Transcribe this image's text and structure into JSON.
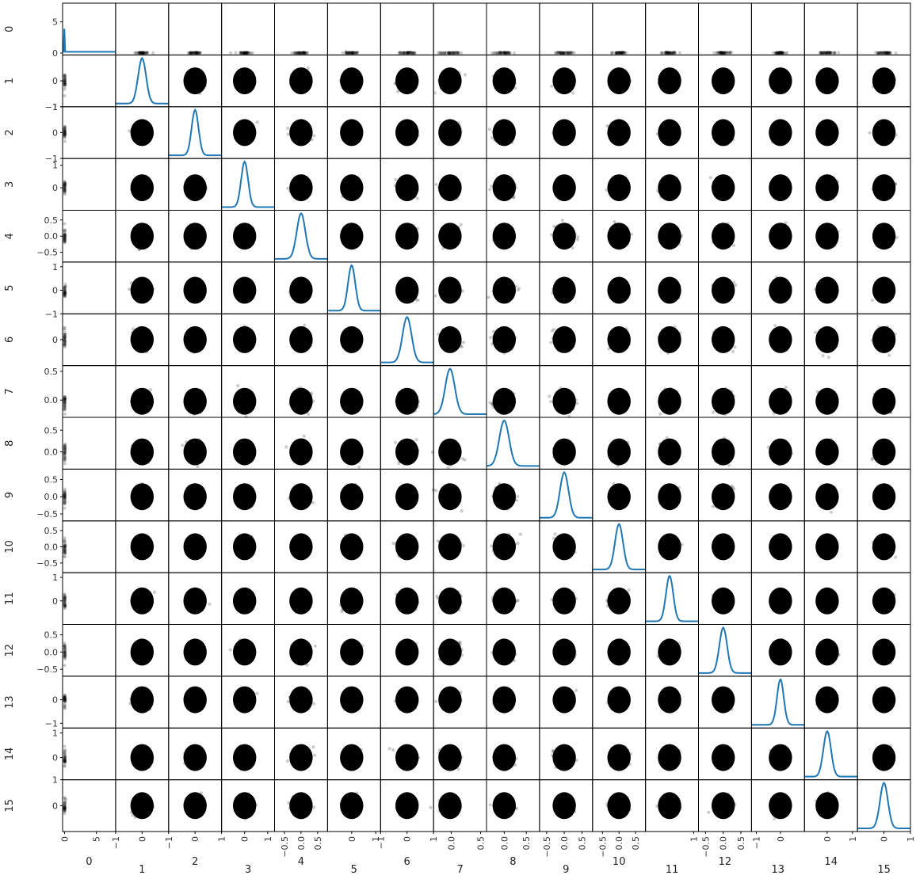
{
  "chart_data": {
    "type": "scatter",
    "subtype": "scatter-matrix",
    "variables": [
      "0",
      "1",
      "2",
      "3",
      "4",
      "5",
      "6",
      "7",
      "8",
      "9",
      "10",
      "11",
      "12",
      "13",
      "14",
      "15"
    ],
    "diagonal": "kde",
    "diagonal_color": "#1f77b4",
    "point_color": "#000000",
    "point_alpha": 0.2,
    "grid": false,
    "var_stats": [
      {
        "name": "0",
        "loc": 0.0,
        "sd": 0.02,
        "ylim": [
          -0.3,
          8
        ],
        "yticks": [
          "0",
          "5"
        ],
        "xlim": [
          -0.3,
          8
        ],
        "xticks": [
          "0",
          "5"
        ]
      },
      {
        "name": "1",
        "loc": 0.0,
        "sd": 0.15,
        "ylim": [
          -1,
          1
        ],
        "yticks": [
          "0",
          "−1"
        ],
        "xlim": [
          -1,
          1
        ],
        "xticks": [
          "−1",
          "0"
        ]
      },
      {
        "name": "2",
        "loc": 0.0,
        "sd": 0.13,
        "ylim": [
          -1,
          1
        ],
        "yticks": [
          "1",
          "0",
          "−1"
        ],
        "xlim": [
          -1,
          1
        ],
        "xticks": [
          "−1",
          "0",
          "1"
        ]
      },
      {
        "name": "3",
        "loc": 0.0,
        "sd": 0.15,
        "ylim": [
          -1,
          1.3
        ],
        "yticks": [
          "1",
          "0"
        ],
        "xlim": [
          -1,
          1.3
        ],
        "xticks": [
          "0",
          "1"
        ]
      },
      {
        "name": "4",
        "loc": 0.0,
        "sd": 0.13,
        "ylim": [
          -0.8,
          0.8
        ],
        "yticks": [
          "0.5",
          "0.0",
          "−0.5"
        ],
        "xlim": [
          -0.8,
          0.8
        ],
        "xticks": [
          "−0.5",
          "0.0",
          "0.5"
        ]
      },
      {
        "name": "5",
        "loc": 0.0,
        "sd": 0.15,
        "ylim": [
          -1,
          1.2
        ],
        "yticks": [
          "1",
          "0",
          "−1"
        ],
        "xlim": [
          -1,
          1.2
        ],
        "xticks": [
          "0",
          "1"
        ]
      },
      {
        "name": "6",
        "loc": 0.0,
        "sd": 0.17,
        "ylim": [
          -1,
          1
        ],
        "yticks": [
          "0"
        ],
        "xlim": [
          -1,
          1
        ],
        "xticks": [
          "−1",
          "0",
          "1"
        ]
      },
      {
        "name": "7",
        "loc": -0.02,
        "sd": 0.08,
        "ylim": [
          -0.3,
          0.6
        ],
        "yticks": [
          "0.5",
          "0.0"
        ],
        "xlim": [
          -0.3,
          0.6
        ],
        "xticks": [
          "0.0",
          "0.5"
        ]
      },
      {
        "name": "8",
        "loc": 0.0,
        "sd": 0.11,
        "ylim": [
          -0.4,
          0.8
        ],
        "yticks": [
          "0.5",
          "0.0"
        ],
        "xlim": [
          -0.4,
          0.8
        ],
        "xticks": [
          "0.0",
          "0.5"
        ]
      },
      {
        "name": "9",
        "loc": 0.0,
        "sd": 0.12,
        "ylim": [
          -0.7,
          0.8
        ],
        "yticks": [
          "0.5",
          "0.0",
          "−0.5"
        ],
        "xlim": [
          -0.7,
          0.8
        ],
        "xticks": [
          "−0.5",
          "0.0",
          "0.5"
        ]
      },
      {
        "name": "10",
        "loc": 0.0,
        "sd": 0.12,
        "ylim": [
          -0.8,
          0.8
        ],
        "yticks": [
          "0.5",
          "0.0",
          "−0.5"
        ],
        "xlim": [
          -0.8,
          0.8
        ],
        "xticks": [
          "−0.5",
          "0.0",
          "0.5"
        ]
      },
      {
        "name": "11",
        "loc": 0.0,
        "sd": 0.15,
        "ylim": [
          -1,
          1.2
        ],
        "yticks": [
          "1",
          "0"
        ],
        "xlim": [
          -1,
          1.2
        ],
        "xticks": [
          "1"
        ]
      },
      {
        "name": "12",
        "loc": 0.0,
        "sd": 0.11,
        "ylim": [
          -0.7,
          0.8
        ],
        "yticks": [
          "0.5",
          "0.0",
          "−0.5"
        ],
        "xlim": [
          -0.7,
          0.8
        ],
        "xticks": [
          "−0.5",
          "0.0",
          "0.5"
        ]
      },
      {
        "name": "13",
        "loc": 0.0,
        "sd": 0.14,
        "ylim": [
          -1.2,
          1
        ],
        "yticks": [
          "0",
          "−1"
        ],
        "xlim": [
          -1.2,
          1
        ],
        "xticks": [
          "−1",
          "0"
        ]
      },
      {
        "name": "14",
        "loc": 0.0,
        "sd": 0.15,
        "ylim": [
          -0.9,
          1.2
        ],
        "yticks": [
          "1",
          "0"
        ],
        "xlim": [
          -0.9,
          1.2
        ],
        "xticks": [
          "0",
          "1"
        ]
      },
      {
        "name": "15",
        "loc": 0.0,
        "sd": 0.15,
        "ylim": [
          -1,
          1
        ],
        "yticks": [
          "1",
          "0"
        ],
        "xlim": [
          -1,
          1
        ],
        "xticks": [
          "0",
          "1"
        ]
      }
    ]
  }
}
